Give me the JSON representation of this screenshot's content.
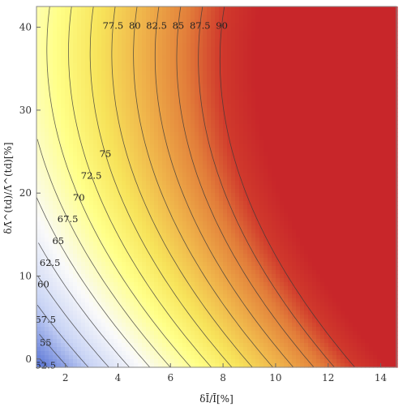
{
  "chart_data": {
    "type": "contour",
    "title": "",
    "xlabel": "δĪ/Ī[%]",
    "ylabel": "δΛ̄^(td)/Λ̄^(td)[%]",
    "x_ticks": [
      2,
      4,
      6,
      8,
      10,
      12,
      14
    ],
    "y_ticks": [
      0,
      10,
      20,
      30,
      40
    ],
    "xlim": [
      0.9,
      14.6
    ],
    "ylim": [
      -1,
      42.5
    ],
    "contour_levels": [
      52.5,
      55,
      57.5,
      60,
      62.5,
      65,
      67.5,
      70,
      72.5,
      75,
      77.5,
      80,
      82.5,
      85,
      87.5,
      90
    ],
    "contour_labels": [
      "52.5",
      "55",
      "57.5",
      "60",
      "62.5",
      "65",
      "67.5",
      "70",
      "72.5",
      "75",
      "77.5",
      "80",
      "82.5",
      "85",
      "87.5",
      "90"
    ],
    "color_scale": [
      {
        "level": 50,
        "color": "#3f5fcf"
      },
      {
        "level": 58,
        "color": "#c9d4f5"
      },
      {
        "level": 64,
        "color": "#fafafa"
      },
      {
        "level": 71,
        "color": "#ffff88"
      },
      {
        "level": 76,
        "color": "#f7e35a"
      },
      {
        "level": 81,
        "color": "#efb24a"
      },
      {
        "level": 86,
        "color": "#e27e3a"
      },
      {
        "level": 90,
        "color": "#d03a2c"
      },
      {
        "level": 94,
        "color": "#c8262a"
      }
    ]
  }
}
